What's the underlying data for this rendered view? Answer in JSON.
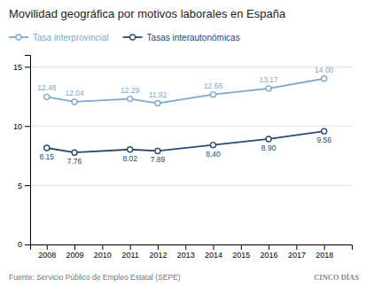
{
  "chart_data": {
    "type": "line",
    "title": "Movilidad geográfica por motivos laborales en España",
    "x": [
      2008,
      2009,
      2011,
      2012,
      2014,
      2016,
      2018
    ],
    "series": [
      {
        "name": "Tasa interprovincial",
        "color": "#7aaacf",
        "values": [
          12.46,
          12.04,
          12.29,
          11.92,
          12.66,
          13.17,
          14.0
        ],
        "value_labels": [
          "12.46",
          "12.04",
          "12.29",
          "11.92",
          "12.66",
          "13.17",
          "14.00"
        ]
      },
      {
        "name": "Tasas interautonómicas",
        "color": "#2a4a6f",
        "values": [
          8.15,
          7.76,
          8.02,
          7.89,
          8.4,
          8.9,
          9.56
        ],
        "value_labels": [
          "8.15",
          "7.76",
          "8.02",
          "7.89",
          "8.40",
          "8.90",
          "9.56"
        ]
      }
    ],
    "xlim": [
      2007.4,
      2019.0
    ],
    "xticks": [
      2008,
      2009,
      2010,
      2011,
      2012,
      2013,
      2014,
      2015,
      2016,
      2017,
      2018
    ],
    "ylim": [
      0,
      16
    ],
    "yticks": [
      0,
      5,
      10,
      15
    ],
    "grid": true,
    "legend": "top",
    "marker": "circle",
    "data_labels": true,
    "annotations": [
      "Fuente: Servicio Público de Empleo Estatal (SEPE)",
      "CINCO DÍAS"
    ]
  }
}
